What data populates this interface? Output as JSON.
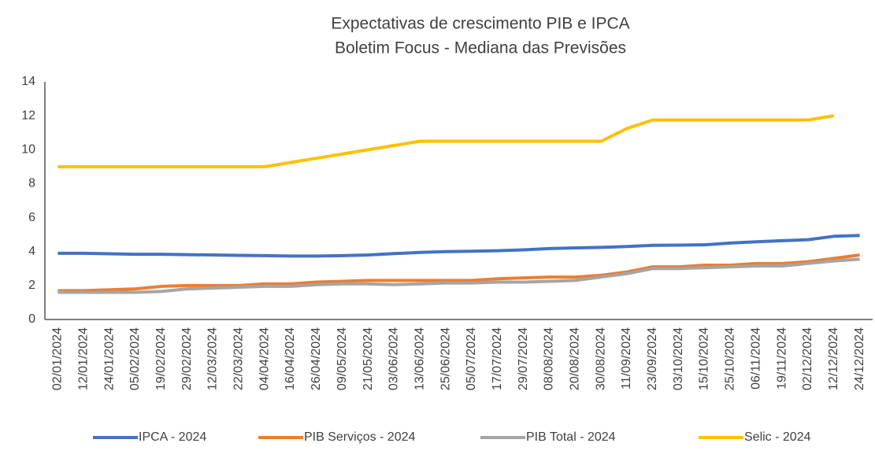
{
  "chart_data": {
    "type": "line",
    "title": "Expectativas de crescimento PIB e IPCA",
    "subtitle": "Boletim Focus - Mediana das Previsões",
    "categories": [
      "02/01/2024",
      "12/01/2024",
      "24/01/2024",
      "05/02/2024",
      "19/02/2024",
      "29/02/2024",
      "12/03/2024",
      "22/03/2024",
      "04/04/2024",
      "16/04/2024",
      "26/04/2024",
      "09/05/2024",
      "21/05/2024",
      "03/06/2024",
      "13/06/2024",
      "25/06/2024",
      "05/07/2024",
      "17/07/2024",
      "29/07/2024",
      "08/08/2024",
      "20/08/2024",
      "30/08/2024",
      "11/09/2024",
      "23/09/2024",
      "03/10/2024",
      "15/10/2024",
      "25/10/2024",
      "06/11/2024",
      "19/11/2024",
      "02/12/2024",
      "12/12/2024",
      "24/12/2024"
    ],
    "series": [
      {
        "name": "IPCA - 2024",
        "color": "#4472c4",
        "values": [
          3.9,
          3.9,
          3.87,
          3.84,
          3.84,
          3.82,
          3.8,
          3.78,
          3.76,
          3.74,
          3.74,
          3.76,
          3.8,
          3.88,
          3.95,
          4.0,
          4.02,
          4.05,
          4.1,
          4.18,
          4.22,
          4.25,
          4.3,
          4.37,
          4.38,
          4.4,
          4.5,
          4.58,
          4.64,
          4.7,
          4.9,
          4.95
        ]
      },
      {
        "name": "PIB Serviços - 2024",
        "color": "#ed7d31",
        "values": [
          1.7,
          1.7,
          1.75,
          1.8,
          1.95,
          2.0,
          2.0,
          2.0,
          2.1,
          2.1,
          2.2,
          2.25,
          2.3,
          2.3,
          2.3,
          2.3,
          2.3,
          2.4,
          2.45,
          2.5,
          2.5,
          2.6,
          2.8,
          3.1,
          3.1,
          3.2,
          3.2,
          3.3,
          3.3,
          3.4,
          3.6,
          3.8
        ]
      },
      {
        "name": "PIB Total - 2024",
        "color": "#a5a5a5",
        "values": [
          1.6,
          1.6,
          1.6,
          1.6,
          1.65,
          1.8,
          1.85,
          1.9,
          1.95,
          1.95,
          2.05,
          2.1,
          2.1,
          2.05,
          2.1,
          2.15,
          2.15,
          2.2,
          2.2,
          2.25,
          2.3,
          2.5,
          2.7,
          3.0,
          3.0,
          3.05,
          3.1,
          3.15,
          3.15,
          3.3,
          3.45,
          3.55
        ]
      },
      {
        "name": "Selic - 2024",
        "color": "#ffc000",
        "values": [
          9,
          9,
          9,
          9,
          9,
          9,
          9,
          9,
          9,
          9.25,
          9.5,
          9.75,
          10,
          10.25,
          10.5,
          10.5,
          10.5,
          10.5,
          10.5,
          10.5,
          10.5,
          10.5,
          11.25,
          11.75,
          11.75,
          11.75,
          11.75,
          11.75,
          11.75,
          11.75,
          12,
          null
        ]
      }
    ],
    "ylim": [
      0,
      14
    ],
    "yticks": [
      0,
      2,
      4,
      6,
      8,
      10,
      12,
      14
    ],
    "grid": false,
    "legend": "bottom"
  }
}
